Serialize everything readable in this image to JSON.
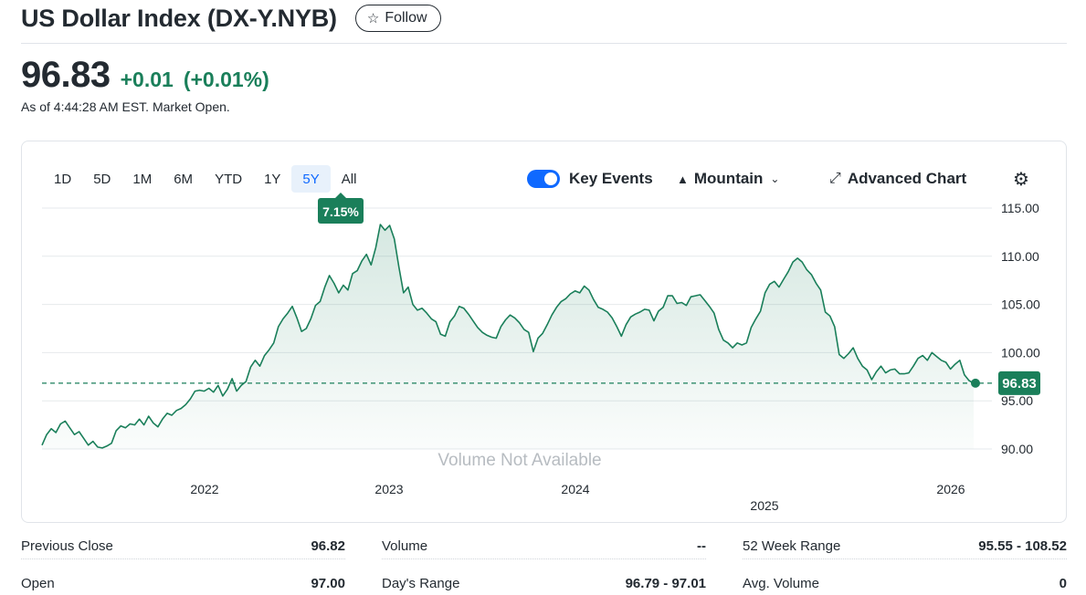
{
  "header": {
    "title": "US Dollar Index (DX-Y.NYB)",
    "follow_label": "Follow",
    "follow_icon": "star-outline-icon"
  },
  "quote": {
    "price": "96.83",
    "change": "+0.01",
    "change_pct": "(+0.01%)",
    "as_of": "As of 4:44:28 AM EST. Market Open.",
    "positive_color": "#1a7f5a"
  },
  "chart_toolbar": {
    "ranges": [
      "1D",
      "5D",
      "1M",
      "6M",
      "YTD",
      "1Y",
      "5Y",
      "All"
    ],
    "active_range": "5Y",
    "key_events_label": "Key Events",
    "key_events_on": true,
    "chart_type_label": "Mountain",
    "advanced_label": "Advanced Chart"
  },
  "chart_data": {
    "type": "area",
    "range_badge": "7.15%",
    "current_label": "96.83",
    "current_value": 96.83,
    "overlay_text": "Volume Not Available",
    "ylim": [
      90,
      115
    ],
    "y_ticks": [
      "115.00",
      "110.00",
      "105.00",
      "100.00",
      "95.00",
      "90.00"
    ],
    "x_ticks": [
      "2022",
      "2023",
      "2024",
      "2025",
      "2026"
    ],
    "grid": true,
    "line_color": "#1a7f5a",
    "series": [
      {
        "values": [
          90.4,
          91.5,
          92.1,
          91.7,
          92.6,
          92.9,
          92.2,
          91.5,
          91.8,
          91.1,
          90.4,
          90.8,
          90.2,
          90.1,
          90.3,
          90.6,
          91.9,
          92.4,
          92.2,
          92.6,
          92.5,
          93.1,
          92.5,
          93.4,
          92.7,
          92.3,
          93.1,
          93.7,
          93.5,
          94.0,
          94.2,
          94.6,
          95.2,
          96.0,
          96.1,
          96.0,
          96.3,
          95.9,
          96.6,
          95.5,
          96.2,
          97.3,
          96.0,
          96.6,
          97.0,
          98.5,
          99.2,
          98.6,
          99.7,
          100.3,
          101.0,
          102.7,
          103.5,
          104.1,
          104.8,
          103.6,
          102.2,
          102.5,
          103.5,
          104.9,
          105.3,
          106.8,
          108.0,
          107.2,
          106.2,
          107.0,
          106.5,
          108.2,
          108.5,
          109.5,
          110.2,
          109.1,
          110.9,
          113.3,
          112.7,
          113.2,
          111.8,
          108.9,
          106.2,
          106.8,
          105.0,
          104.4,
          104.6,
          104.1,
          103.5,
          103.2,
          101.9,
          101.7,
          103.2,
          103.8,
          104.8,
          104.6,
          104.0,
          103.3,
          102.6,
          102.1,
          101.8,
          101.6,
          101.5,
          102.7,
          103.4,
          103.9,
          103.6,
          103.1,
          102.4,
          102.1,
          100.1,
          101.5,
          102.0,
          102.9,
          103.9,
          104.7,
          105.3,
          105.6,
          106.1,
          106.4,
          106.2,
          106.9,
          106.5,
          105.5,
          104.7,
          104.5,
          104.2,
          103.6,
          102.7,
          101.7,
          102.9,
          103.7,
          104.0,
          104.2,
          104.5,
          104.4,
          103.3,
          104.3,
          104.7,
          105.9,
          105.9,
          105.1,
          105.2,
          104.9,
          105.8,
          105.9,
          106.0,
          105.4,
          104.8,
          104.1,
          102.4,
          101.3,
          101.0,
          100.5,
          101.0,
          100.8,
          101.0,
          102.6,
          103.5,
          104.3,
          106.2,
          107.1,
          107.4,
          106.8,
          107.6,
          108.4,
          109.4,
          109.8,
          109.4,
          108.6,
          108.1,
          107.2,
          106.5,
          104.2,
          103.8,
          102.7,
          99.8,
          99.4,
          99.9,
          100.5,
          99.4,
          98.6,
          98.2,
          97.2,
          98.0,
          98.6,
          97.9,
          98.2,
          98.3,
          97.8,
          97.8,
          97.9,
          98.6,
          99.4,
          99.7,
          99.2,
          100.0,
          99.6,
          99.2,
          99.0,
          98.3,
          98.8,
          99.2,
          97.7,
          97.1,
          96.83
        ]
      }
    ]
  },
  "stats": {
    "prev_close_label": "Previous Close",
    "prev_close": "96.82",
    "open_label": "Open",
    "open": "97.00",
    "volume_label": "Volume",
    "volume": "--",
    "days_range_label": "Day's Range",
    "days_range": "96.79 - 97.01",
    "week52_label": "52 Week Range",
    "week52": "95.55 - 108.52",
    "avg_volume_label": "Avg. Volume",
    "avg_volume": "0"
  }
}
